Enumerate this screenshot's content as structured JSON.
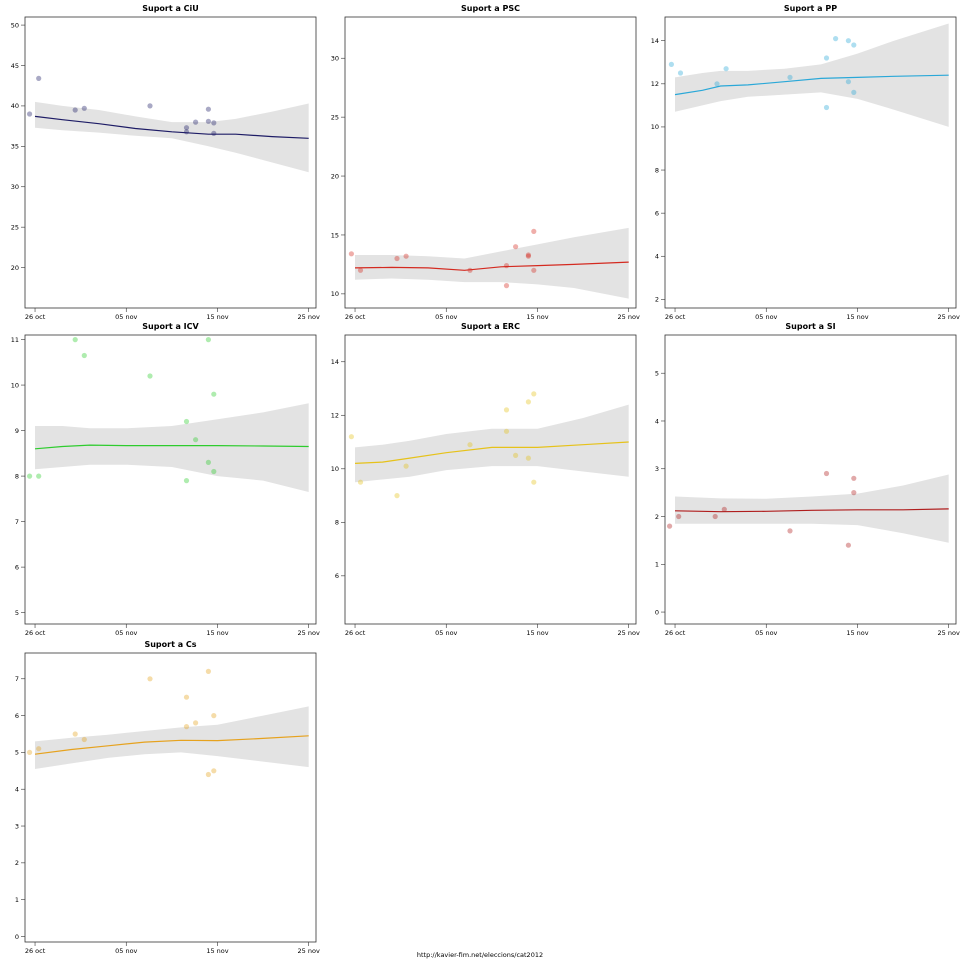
{
  "footer": "http://kavier-fim.net/eleccions/cat2012",
  "chart_data": [
    {
      "type": "line",
      "title": "Suport a CiU",
      "color": "#1e1c66",
      "x_ticks": [
        "26 oct",
        "05 nov",
        "15 nov",
        "25 nov"
      ],
      "y_ticks": [
        "20",
        "25",
        "30",
        "35",
        "40",
        "45",
        "50"
      ],
      "ylim": [
        15,
        51
      ],
      "trend": {
        "x": [
          0,
          3,
          7,
          11,
          15,
          19,
          22,
          26,
          30
        ],
        "y": [
          38.7,
          38.3,
          37.8,
          37.2,
          36.8,
          36.5,
          36.5,
          36.2,
          36.0
        ]
      },
      "band": {
        "lower": [
          37.3,
          37.0,
          36.7,
          36.3,
          36.0,
          35.0,
          34.2,
          33.0,
          31.8
        ],
        "upper": [
          40.5,
          40.0,
          39.5,
          38.7,
          38.0,
          38.0,
          38.4,
          39.3,
          40.3
        ]
      },
      "points": [
        [
          -0.6,
          39.0
        ],
        [
          0.4,
          43.4
        ],
        [
          4.4,
          39.5
        ],
        [
          5.4,
          39.7
        ],
        [
          12.6,
          40.0
        ],
        [
          16.6,
          37.3
        ],
        [
          16.6,
          36.8
        ],
        [
          17.6,
          38.0
        ],
        [
          19.0,
          39.6
        ],
        [
          19.0,
          38.1
        ],
        [
          19.6,
          37.9
        ],
        [
          19.6,
          36.6
        ]
      ]
    },
    {
      "type": "line",
      "title": "Suport a PSC",
      "color": "#d42a20",
      "x_ticks": [
        "26 oct",
        "05 nov",
        "15 nov",
        "25 nov"
      ],
      "y_ticks": [
        "10",
        "15",
        "20",
        "25",
        "30"
      ],
      "ylim": [
        8.8,
        33.5
      ],
      "trend": {
        "x": [
          0,
          4,
          8,
          12,
          16,
          20,
          24,
          30
        ],
        "y": [
          12.2,
          12.25,
          12.2,
          12.0,
          12.3,
          12.4,
          12.5,
          12.7
        ]
      },
      "band": {
        "lower": [
          11.2,
          11.3,
          11.2,
          11.0,
          11.0,
          10.8,
          10.5,
          9.6
        ],
        "upper": [
          13.3,
          13.3,
          13.2,
          13.0,
          13.6,
          14.2,
          14.8,
          15.6
        ]
      },
      "points": [
        [
          -0.4,
          13.4
        ],
        [
          0.6,
          12.0
        ],
        [
          4.6,
          13.0
        ],
        [
          5.6,
          13.2
        ],
        [
          12.6,
          12.0
        ],
        [
          16.6,
          12.4
        ],
        [
          16.6,
          10.7
        ],
        [
          17.6,
          14.0
        ],
        [
          19.0,
          13.3
        ],
        [
          19.0,
          13.2
        ],
        [
          19.6,
          15.3
        ],
        [
          19.6,
          12.0
        ]
      ]
    },
    {
      "type": "line",
      "title": "Suport a PP",
      "color": "#2aa8d8",
      "x_ticks": [
        "26 oct",
        "05 nov",
        "15 nov",
        "25 nov"
      ],
      "y_ticks": [
        "2",
        "4",
        "6",
        "8",
        "10",
        "12",
        "14"
      ],
      "ylim": [
        1.6,
        15.1
      ],
      "trend": {
        "x": [
          0,
          3,
          5,
          8,
          12,
          16,
          20,
          24,
          30
        ],
        "y": [
          11.5,
          11.7,
          11.9,
          11.95,
          12.1,
          12.25,
          12.3,
          12.35,
          12.4
        ]
      },
      "band": {
        "lower": [
          10.7,
          11.0,
          11.2,
          11.4,
          11.5,
          11.6,
          11.3,
          10.8,
          10.0
        ],
        "upper": [
          12.3,
          12.5,
          12.6,
          12.6,
          12.7,
          12.9,
          13.4,
          14.0,
          14.8
        ]
      },
      "points": [
        [
          -0.4,
          12.9
        ],
        [
          0.6,
          12.5
        ],
        [
          4.6,
          12.0
        ],
        [
          5.6,
          12.7
        ],
        [
          12.6,
          12.3
        ],
        [
          16.6,
          13.2
        ],
        [
          16.6,
          10.9
        ],
        [
          17.6,
          14.1
        ],
        [
          19.0,
          14.0
        ],
        [
          19.0,
          12.1
        ],
        [
          19.6,
          13.8
        ],
        [
          19.6,
          11.6
        ]
      ]
    },
    {
      "type": "line",
      "title": "Suport a ICV",
      "color": "#2ecc2e",
      "x_ticks": [
        "26 oct",
        "05 nov",
        "15 nov",
        "25 nov"
      ],
      "y_ticks": [
        "5",
        "6",
        "7",
        "8",
        "9",
        "10",
        "11"
      ],
      "ylim": [
        4.75,
        11.1
      ],
      "trend": {
        "x": [
          0,
          3,
          6,
          10,
          15,
          20,
          25,
          30
        ],
        "y": [
          8.6,
          8.65,
          8.68,
          8.67,
          8.67,
          8.67,
          8.66,
          8.65
        ]
      },
      "band": {
        "lower": [
          8.15,
          8.2,
          8.25,
          8.25,
          8.2,
          8.0,
          7.9,
          7.65
        ],
        "upper": [
          9.1,
          9.1,
          9.05,
          9.05,
          9.1,
          9.25,
          9.4,
          9.6
        ]
      },
      "points": [
        [
          -0.6,
          8.0
        ],
        [
          0.4,
          8.0
        ],
        [
          4.4,
          11.0
        ],
        [
          5.4,
          10.65
        ],
        [
          12.6,
          10.2
        ],
        [
          16.6,
          9.2
        ],
        [
          16.6,
          7.9
        ],
        [
          17.6,
          8.8
        ],
        [
          19.0,
          11.0
        ],
        [
          19.0,
          8.3
        ],
        [
          19.6,
          9.8
        ],
        [
          19.6,
          8.1
        ]
      ]
    },
    {
      "type": "line",
      "title": "Suport a ERC",
      "color": "#e6c21a",
      "x_ticks": [
        "26 oct",
        "05 nov",
        "15 nov",
        "25 nov"
      ],
      "y_ticks": [
        "6",
        "8",
        "10",
        "12",
        "14"
      ],
      "ylim": [
        4.2,
        15
      ],
      "trend": {
        "x": [
          0,
          3,
          6,
          10,
          15,
          20,
          25,
          30
        ],
        "y": [
          10.2,
          10.25,
          10.4,
          10.6,
          10.8,
          10.8,
          10.9,
          11.0
        ]
      },
      "band": {
        "lower": [
          9.5,
          9.6,
          9.7,
          9.95,
          10.1,
          10.1,
          9.9,
          9.7
        ],
        "upper": [
          10.8,
          10.9,
          11.05,
          11.3,
          11.5,
          11.5,
          11.9,
          12.4
        ]
      },
      "points": [
        [
          -0.4,
          11.2
        ],
        [
          0.6,
          9.5
        ],
        [
          4.6,
          9.0
        ],
        [
          5.6,
          10.1
        ],
        [
          12.6,
          10.9
        ],
        [
          16.6,
          12.2
        ],
        [
          16.6,
          11.4
        ],
        [
          17.6,
          10.5
        ],
        [
          19.0,
          12.5
        ],
        [
          19.0,
          10.4
        ],
        [
          19.6,
          12.8
        ],
        [
          19.6,
          9.5
        ]
      ]
    },
    {
      "type": "line",
      "title": "Suport a SI",
      "color": "#b01e1e",
      "x_ticks": [
        "26 oct",
        "05 nov",
        "15 nov",
        "25 nov"
      ],
      "y_ticks": [
        "0",
        "1",
        "2",
        "3",
        "4",
        "5"
      ],
      "ylim": [
        -0.25,
        5.8
      ],
      "trend": {
        "x": [
          0,
          5,
          10,
          15,
          20,
          25,
          30
        ],
        "y": [
          2.12,
          2.1,
          2.11,
          2.13,
          2.14,
          2.14,
          2.16
        ]
      },
      "band": {
        "lower": [
          1.85,
          1.85,
          1.85,
          1.85,
          1.82,
          1.65,
          1.45
        ],
        "upper": [
          2.42,
          2.38,
          2.37,
          2.42,
          2.48,
          2.65,
          2.88
        ]
      },
      "points": [
        [
          -0.6,
          1.8
        ],
        [
          0.4,
          2.0
        ],
        [
          4.4,
          2.0
        ],
        [
          5.4,
          2.15
        ],
        [
          12.6,
          1.7
        ],
        [
          16.6,
          2.9
        ],
        [
          19.0,
          1.4
        ],
        [
          19.6,
          2.8
        ],
        [
          19.6,
          2.5
        ]
      ]
    },
    {
      "type": "line",
      "title": "Suport a Cs",
      "color": "#e6a21e",
      "x_ticks": [
        "26 oct",
        "05 nov",
        "15 nov",
        "25 nov"
      ],
      "y_ticks": [
        "0",
        "1",
        "2",
        "3",
        "4",
        "5",
        "6",
        "7"
      ],
      "ylim": [
        -0.15,
        7.7
      ],
      "trend": {
        "x": [
          0,
          4,
          8,
          12,
          16,
          20,
          25,
          30
        ],
        "y": [
          4.95,
          5.08,
          5.18,
          5.28,
          5.33,
          5.32,
          5.38,
          5.45
        ]
      },
      "band": {
        "lower": [
          4.55,
          4.7,
          4.85,
          4.95,
          5.0,
          4.9,
          4.75,
          4.6
        ],
        "upper": [
          5.3,
          5.4,
          5.48,
          5.58,
          5.68,
          5.75,
          6.0,
          6.25
        ]
      },
      "points": [
        [
          -0.6,
          5.0
        ],
        [
          0.4,
          5.1
        ],
        [
          4.4,
          5.5
        ],
        [
          5.4,
          5.35
        ],
        [
          12.6,
          7.0
        ],
        [
          16.6,
          6.5
        ],
        [
          16.6,
          5.7
        ],
        [
          17.6,
          5.8
        ],
        [
          19.0,
          7.2
        ],
        [
          19.0,
          4.4
        ],
        [
          19.6,
          6.0
        ],
        [
          19.6,
          4.5
        ]
      ]
    }
  ]
}
